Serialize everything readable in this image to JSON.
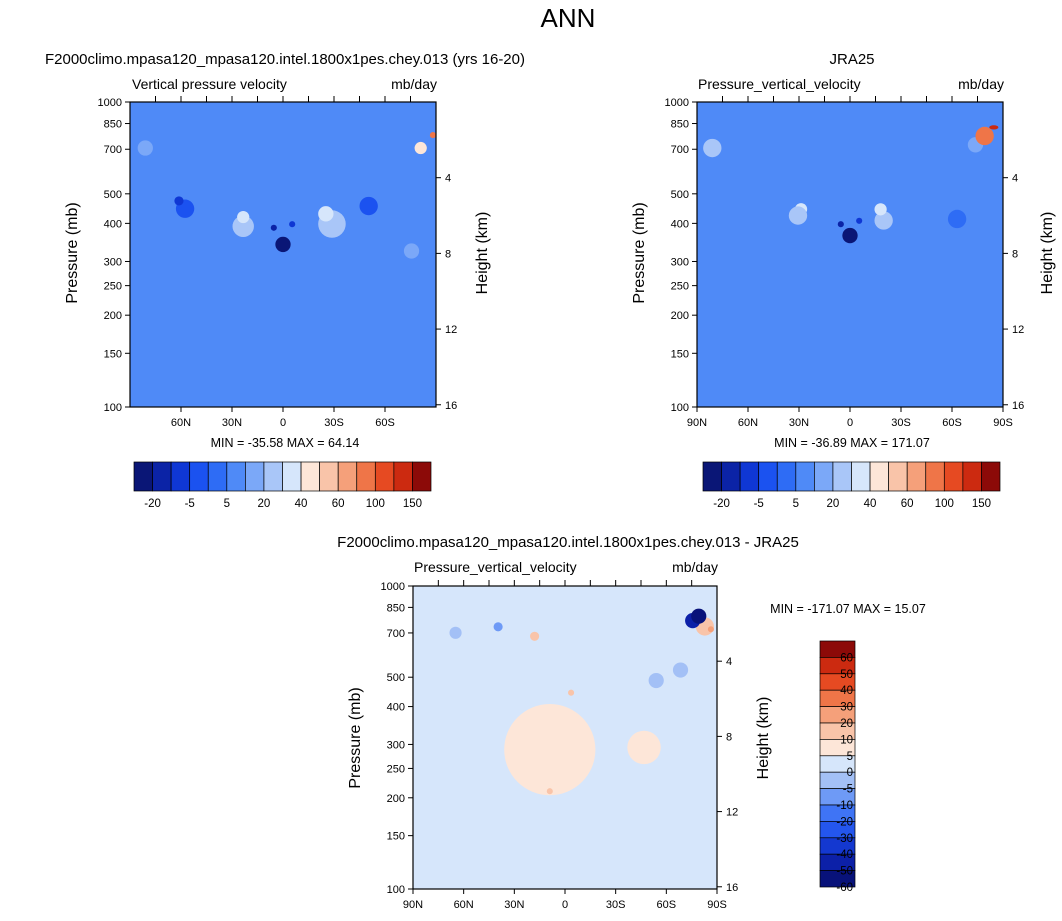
{
  "main_title": "ANN",
  "chart_data": [
    {
      "type": "heatmap",
      "title": "F2000climo.mpasa120_mpasa120.intel.1800x1pes.chey.013 (yrs 16-20)",
      "variable": "Vertical pressure velocity",
      "units": "mb/day",
      "ylabel": "Pressure (mb)",
      "ylabel_right": "Height (km)",
      "y_scale": "log",
      "ylim": [
        1000,
        100
      ],
      "y_ticks": [
        "100",
        "150",
        "200",
        "250",
        "300",
        "400",
        "500",
        "700",
        "850",
        "1000"
      ],
      "right_ticks": [
        "16",
        "12",
        "8",
        "4"
      ],
      "x_ticks": [
        "60N",
        "30N",
        "0",
        "30S",
        "60S"
      ],
      "stats": "MIN = -35.58  MAX =  64.14",
      "colorbar_labels": [
        "-20",
        "-5",
        "5",
        "20",
        "40",
        "60",
        "100",
        "150"
      ],
      "colorbar_levels": [
        -35,
        -30,
        -25,
        -20,
        -15,
        -10,
        -5,
        0,
        5,
        10,
        15,
        20,
        30,
        40,
        50,
        60,
        80,
        100,
        120,
        150
      ]
    },
    {
      "type": "heatmap",
      "title": "JRA25",
      "variable": "Pressure_vertical_velocity",
      "units": "mb/day",
      "ylabel": "Pressure (mb)",
      "ylabel_right": "Height (km)",
      "y_scale": "log",
      "ylim": [
        1000,
        100
      ],
      "y_ticks": [
        "100",
        "150",
        "200",
        "250",
        "300",
        "400",
        "500",
        "700",
        "850",
        "1000"
      ],
      "right_ticks": [
        "16",
        "12",
        "8",
        "4"
      ],
      "x_ticks": [
        "90N",
        "60N",
        "30N",
        "0",
        "30S",
        "60S",
        "90S"
      ],
      "stats": "MIN = -36.89  MAX = 171.07",
      "colorbar_labels": [
        "-20",
        "-5",
        "5",
        "20",
        "40",
        "60",
        "100",
        "150"
      ],
      "colorbar_levels": [
        -35,
        -30,
        -25,
        -20,
        -15,
        -10,
        -5,
        0,
        5,
        10,
        15,
        20,
        30,
        40,
        50,
        60,
        80,
        100,
        120,
        150
      ]
    },
    {
      "type": "heatmap",
      "title": "F2000climo.mpasa120_mpasa120.intel.1800x1pes.chey.013 - JRA25",
      "variable": "Pressure_vertical_velocity",
      "units": "mb/day",
      "ylabel": "Pressure (mb)",
      "ylabel_right": "Height (km)",
      "y_scale": "log",
      "ylim": [
        1000,
        100
      ],
      "y_ticks": [
        "100",
        "150",
        "200",
        "250",
        "300",
        "400",
        "500",
        "700",
        "850",
        "1000"
      ],
      "right_ticks": [
        "16",
        "12",
        "8",
        "4"
      ],
      "x_ticks": [
        "90N",
        "60N",
        "30N",
        "0",
        "30S",
        "60S",
        "90S"
      ],
      "stats": "MIN = -171.07  MAX =  15.07",
      "colorbar_labels": [
        "60",
        "50",
        "40",
        "30",
        "20",
        "10",
        "5",
        "0",
        "-5",
        "-10",
        "-20",
        "-30",
        "-40",
        "-50",
        "-60"
      ],
      "colorbar_levels": [
        -60,
        -50,
        -40,
        -30,
        -20,
        -10,
        -5,
        0,
        5,
        10,
        20,
        30,
        40,
        50,
        60
      ]
    }
  ],
  "colors": {
    "seq_cmap": [
      "#0a1676",
      "#0b23a6",
      "#0f37d4",
      "#1b52f0",
      "#2e6cf5",
      "#4f8af7",
      "#7ba8f8",
      "#a9c6f8",
      "#d6e6fb",
      "#fde6d8",
      "#f9c4a9",
      "#f5a07a",
      "#ef7548",
      "#e64a22",
      "#cc2a10",
      "#8c0a08"
    ],
    "diff_cmap": [
      "#08127a",
      "#0c20a8",
      "#1438d0",
      "#2456ee",
      "#3f74f5",
      "#6e9af6",
      "#a3c0f6",
      "#d6e6fb",
      "#fde6d8",
      "#f9c4a9",
      "#f5a07a",
      "#ef7548",
      "#e64a22",
      "#cc2a10",
      "#8c0a08"
    ],
    "axis": "#000000"
  }
}
